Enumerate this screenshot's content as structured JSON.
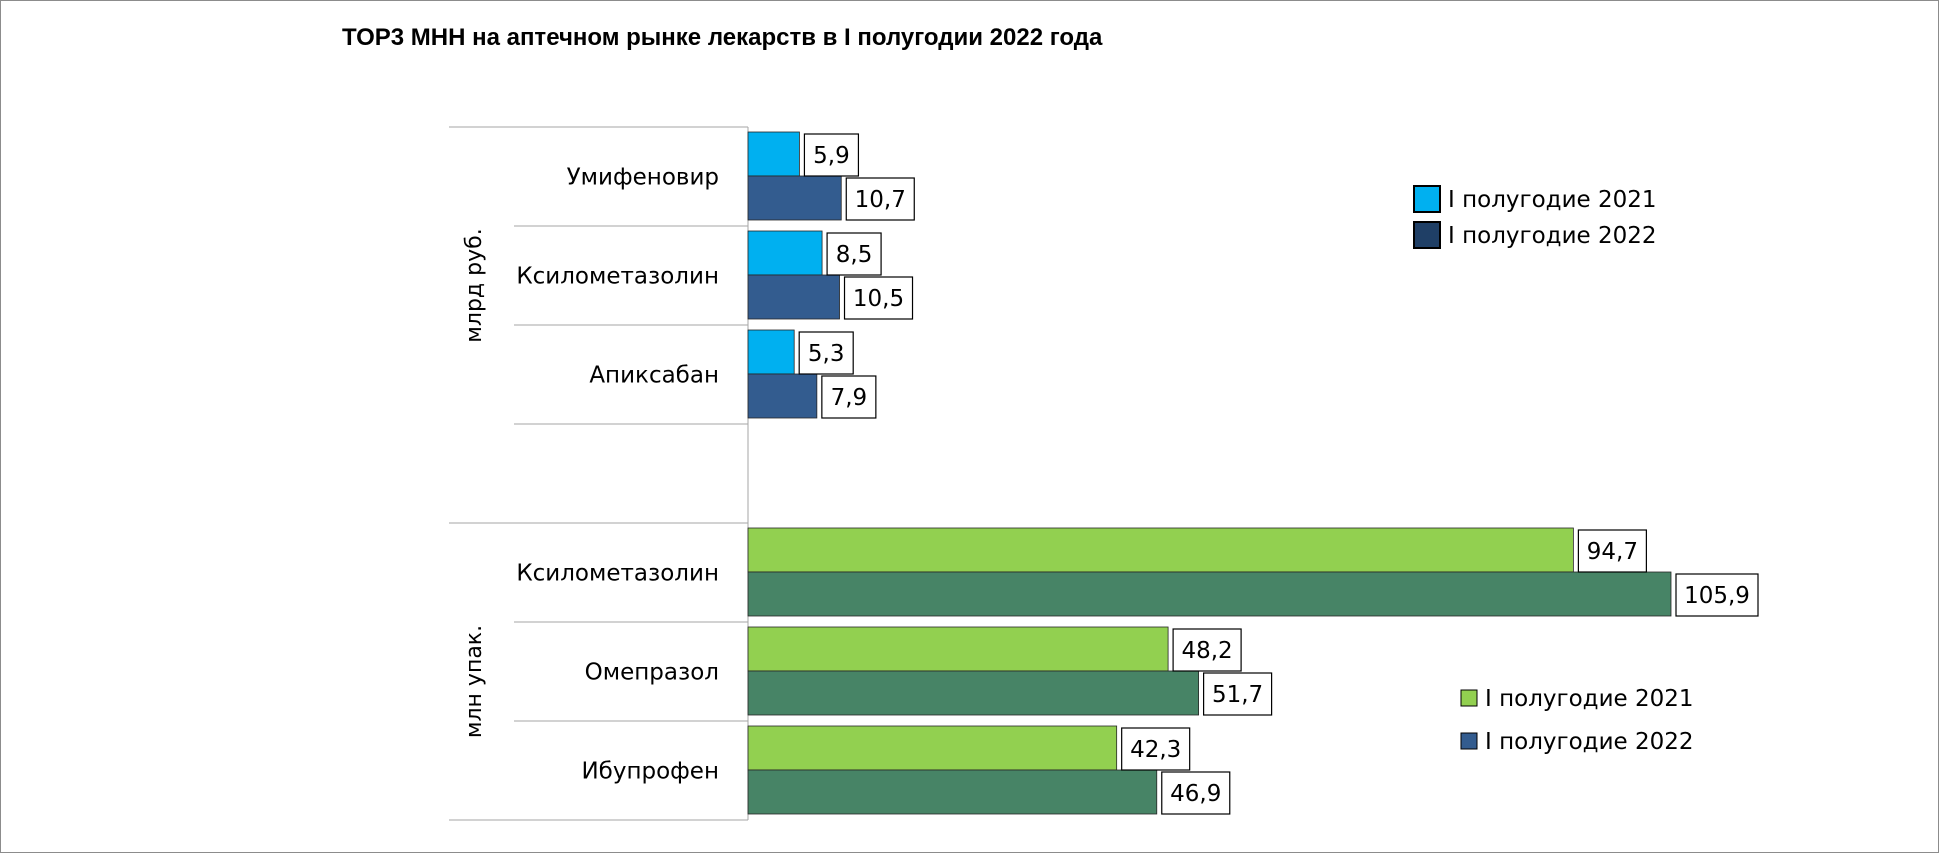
{
  "chart_data": {
    "type": "bar",
    "orientation": "horizontal",
    "title": "ТОР3 МНН на аптечном рынке лекарств в I полугодии 2022 года",
    "panels": [
      {
        "group_label": "млрд руб.",
        "categories": [
          "Умифеновир",
          "Ксилометазолин",
          "Апиксабан"
        ],
        "series": [
          {
            "name": "I полугодие 2021",
            "values": [
              5.9,
              8.5,
              5.3
            ],
            "labels": [
              "5,9",
              "8,5",
              "5,3"
            ],
            "color": "#00b0f0"
          },
          {
            "name": "I полугодие 2022",
            "values": [
              10.7,
              10.5,
              7.9
            ],
            "labels": [
              "10,7",
              "10,5",
              "7,9"
            ],
            "color": "#335c8f"
          }
        ],
        "legend": {
          "position": "right-top",
          "swatches": [
            "#00b0f0",
            "#1f3f66"
          ]
        }
      },
      {
        "group_label": "млн упак.",
        "categories": [
          "Ксилометазолин",
          "Омепразол",
          "Ибупрофен"
        ],
        "series": [
          {
            "name": "I полугодие 2021",
            "values": [
              94.7,
              48.2,
              42.3
            ],
            "labels": [
              "94,7",
              "48,2",
              "42,3"
            ],
            "color": "#92d050"
          },
          {
            "name": "I полугодие 2022",
            "values": [
              105.9,
              51.7,
              46.9
            ],
            "labels": [
              "105,9",
              "51,7",
              "46,9"
            ],
            "color": "#478466"
          }
        ],
        "legend": {
          "position": "right-bottom",
          "swatches": [
            "#92d050",
            "#335c8f"
          ]
        }
      }
    ],
    "grid": false
  }
}
